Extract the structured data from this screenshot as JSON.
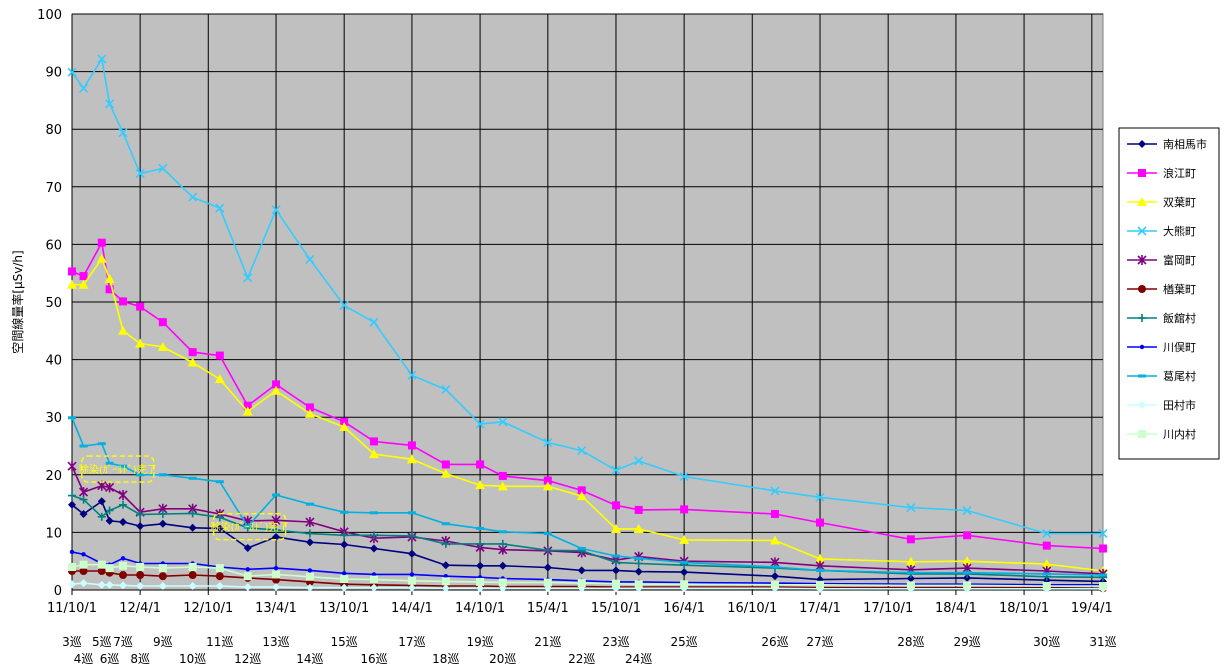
{
  "chart_data": {
    "type": "line",
    "title": "",
    "xlabel": "",
    "ylabel": "空間線量率[μSv/h]",
    "ylim": [
      0,
      100
    ],
    "yticks": [
      0,
      10,
      20,
      30,
      40,
      50,
      60,
      70,
      80,
      90,
      100
    ],
    "xlim": [
      "2011-10-01",
      "2019-05-01"
    ],
    "x_tick_labels": [
      "11/10/1",
      "12/4/1",
      "12/10/1",
      "13/4/1",
      "13/10/1",
      "14/4/1",
      "14/10/1",
      "15/4/1",
      "15/10/1",
      "16/4/1",
      "16/10/1",
      "17/4/1",
      "17/10/1",
      "18/4/1",
      "18/10/1",
      "19/4/1"
    ],
    "x_tick_dates": [
      "2011-10-01",
      "2012-04-01",
      "2012-10-01",
      "2013-04-01",
      "2013-10-01",
      "2014-04-01",
      "2014-10-01",
      "2015-04-01",
      "2015-10-01",
      "2016-04-01",
      "2016-10-01",
      "2017-04-01",
      "2017-10-01",
      "2018-04-01",
      "2018-10-01",
      "2019-04-01"
    ],
    "rounds": [
      {
        "label": "3巡",
        "date": "2011-10-01",
        "row": 1
      },
      {
        "label": "4巡",
        "date": "2011-11-01",
        "row": 2
      },
      {
        "label": "5巡",
        "date": "2011-12-20",
        "row": 1
      },
      {
        "label": "6巡",
        "date": "2012-01-10",
        "row": 2
      },
      {
        "label": "7巡",
        "date": "2012-02-15",
        "row": 1
      },
      {
        "label": "8巡",
        "date": "2012-04-01",
        "row": 2
      },
      {
        "label": "9巡",
        "date": "2012-06-01",
        "row": 1
      },
      {
        "label": "10巡",
        "date": "2012-08-20",
        "row": 2
      },
      {
        "label": "11巡",
        "date": "2012-11-01",
        "row": 1
      },
      {
        "label": "12巡",
        "date": "2013-01-15",
        "row": 2
      },
      {
        "label": "13巡",
        "date": "2013-04-01",
        "row": 1
      },
      {
        "label": "14巡",
        "date": "2013-07-01",
        "row": 2
      },
      {
        "label": "15巡",
        "date": "2013-10-01",
        "row": 1
      },
      {
        "label": "16巡",
        "date": "2013-12-20",
        "row": 2
      },
      {
        "label": "17巡",
        "date": "2014-04-01",
        "row": 1
      },
      {
        "label": "18巡",
        "date": "2014-07-01",
        "row": 2
      },
      {
        "label": "19巡",
        "date": "2014-10-01",
        "row": 1
      },
      {
        "label": "20巡",
        "date": "2014-12-01",
        "row": 2
      },
      {
        "label": "21巡",
        "date": "2015-04-01",
        "row": 1
      },
      {
        "label": "22巡",
        "date": "2015-07-01",
        "row": 2
      },
      {
        "label": "23巡",
        "date": "2015-10-01",
        "row": 1
      },
      {
        "label": "24巡",
        "date": "2015-12-01",
        "row": 2
      },
      {
        "label": "25巡",
        "date": "2016-04-01",
        "row": 1
      },
      {
        "label": "26巡",
        "date": "2016-12-01",
        "row": 1
      },
      {
        "label": "27巡",
        "date": "2017-04-01",
        "row": 1
      },
      {
        "label": "28巡",
        "date": "2017-12-01",
        "row": 1
      },
      {
        "label": "29巡",
        "date": "2018-05-01",
        "row": 1
      },
      {
        "label": "30巡",
        "date": "2018-12-01",
        "row": 1
      },
      {
        "label": "31巡",
        "date": "2019-05-01",
        "row": 1
      }
    ],
    "annotations": [
      {
        "text": "除染(ｶﾞｰﾙﾄﾞ)完了",
        "date": "2012-02-01",
        "y": 21
      },
      {
        "text": "除染(ｶﾞｰﾙﾄﾞ)完了",
        "date": "2013-01-20",
        "y": 11
      }
    ],
    "plot_background": "#c0c0c0",
    "grid": true,
    "legend_position": "right",
    "series": [
      {
        "name": "南相馬市",
        "color": "#000080",
        "marker": "diamond",
        "x": [
          "2011-10-01",
          "2011-11-01",
          "2011-12-20",
          "2012-01-10",
          "2012-02-15",
          "2012-04-01",
          "2012-06-01",
          "2012-08-20",
          "2012-11-01",
          "2013-01-15",
          "2013-04-01",
          "2013-07-01",
          "2013-10-01",
          "2013-12-20",
          "2014-04-01",
          "2014-07-01",
          "2014-10-01",
          "2014-12-01",
          "2015-04-01",
          "2015-07-01",
          "2015-10-01",
          "2015-12-01",
          "2016-04-01",
          "2016-12-01",
          "2017-04-01",
          "2017-12-01",
          "2018-05-01",
          "2018-12-01",
          "2019-05-01"
        ],
        "y": [
          14.8,
          13.2,
          15.4,
          12,
          11.8,
          11.1,
          11.5,
          10.8,
          10.7,
          7.3,
          9.2,
          8.3,
          7.9,
          7.2,
          6.3,
          4.3,
          4.2,
          4.2,
          3.9,
          3.4,
          3.4,
          3.2,
          3.1,
          2.4,
          1.8,
          2.0,
          2.1,
          1.7,
          1.5
        ]
      },
      {
        "name": "浪江町",
        "color": "#ff00ff",
        "marker": "square",
        "x": [
          "2011-10-01",
          "2011-11-01",
          "2011-12-20",
          "2012-01-10",
          "2012-02-15",
          "2012-04-01",
          "2012-06-01",
          "2012-08-20",
          "2012-11-01",
          "2013-01-15",
          "2013-04-01",
          "2013-07-01",
          "2013-10-01",
          "2013-12-20",
          "2014-04-01",
          "2014-07-01",
          "2014-10-01",
          "2014-12-01",
          "2015-04-01",
          "2015-07-01",
          "2015-10-01",
          "2015-12-01",
          "2016-04-01",
          "2016-12-01",
          "2017-04-01",
          "2017-12-01",
          "2018-05-01",
          "2018-12-01",
          "2019-05-01"
        ],
        "y": [
          55.3,
          54.5,
          60.3,
          52.2,
          50.1,
          49.2,
          46.5,
          41.3,
          40.7,
          32,
          35.7,
          31.7,
          29.2,
          25.8,
          25.1,
          21.8,
          21.8,
          19.8,
          19,
          17.3,
          14.7,
          13.9,
          14,
          13.2,
          11.7,
          8.8,
          9.5,
          7.7,
          7.2
        ]
      },
      {
        "name": "双葉町",
        "color": "#ffff00",
        "marker": "triangle",
        "x": [
          "2011-10-01",
          "2011-11-01",
          "2011-12-20",
          "2012-01-10",
          "2012-02-15",
          "2012-04-01",
          "2012-06-01",
          "2012-08-20",
          "2012-11-01",
          "2013-01-15",
          "2013-04-01",
          "2013-07-01",
          "2013-10-01",
          "2013-12-20",
          "2014-04-01",
          "2014-07-01",
          "2014-10-01",
          "2014-12-01",
          "2015-04-01",
          "2015-07-01",
          "2015-10-01",
          "2015-12-01",
          "2016-04-01",
          "2016-12-01",
          "2017-04-01",
          "2017-12-01",
          "2018-05-01",
          "2018-12-01",
          "2019-05-01"
        ],
        "y": [
          53,
          53,
          57.5,
          54,
          45,
          42.8,
          42.2,
          39.5,
          36.6,
          31,
          34.6,
          30.6,
          28.3,
          23.6,
          22.7,
          20.2,
          18.2,
          18,
          18,
          16.3,
          10.6,
          10.6,
          8.7,
          8.6,
          5.4,
          4.9,
          5.0,
          4.5,
          3.3
        ]
      },
      {
        "name": "大熊町",
        "color": "#33ccff",
        "marker": "x",
        "x": [
          "2011-10-01",
          "2011-11-01",
          "2011-12-20",
          "2012-01-10",
          "2012-02-15",
          "2012-04-01",
          "2012-06-01",
          "2012-08-20",
          "2012-11-01",
          "2013-01-15",
          "2013-04-01",
          "2013-07-01",
          "2013-10-01",
          "2013-12-20",
          "2014-04-01",
          "2014-07-01",
          "2014-10-01",
          "2014-12-01",
          "2015-04-01",
          "2015-07-01",
          "2015-10-01",
          "2015-12-01",
          "2016-04-01",
          "2016-12-01",
          "2017-04-01",
          "2017-12-01",
          "2018-05-01",
          "2018-12-01",
          "2019-05-01"
        ],
        "y": [
          89.9,
          87.1,
          92.2,
          84.4,
          79.4,
          72.3,
          73.2,
          68.2,
          66.3,
          54.2,
          66,
          57.4,
          49.4,
          46.5,
          37.3,
          34.8,
          28.8,
          29.2,
          25.6,
          24.2,
          20.8,
          22.4,
          19.7,
          17.2,
          16.1,
          14.3,
          13.8,
          9.8,
          9.8
        ]
      },
      {
        "name": "富岡町",
        "color": "#800080",
        "marker": "star",
        "x": [
          "2011-10-01",
          "2011-11-01",
          "2011-12-20",
          "2012-01-10",
          "2012-02-15",
          "2012-04-01",
          "2012-06-01",
          "2012-08-20",
          "2012-11-01",
          "2013-01-15",
          "2013-04-01",
          "2013-07-01",
          "2013-10-01",
          "2013-12-20",
          "2014-04-01",
          "2014-07-01",
          "2014-10-01",
          "2014-12-01",
          "2015-04-01",
          "2015-07-01",
          "2015-10-01",
          "2015-12-01",
          "2016-04-01",
          "2016-12-01",
          "2017-04-01",
          "2017-12-01",
          "2018-05-01",
          "2018-12-01",
          "2019-05-01"
        ],
        "y": [
          21.5,
          17,
          18.1,
          17.8,
          16.5,
          13.5,
          14.1,
          14.1,
          13.2,
          12,
          12.1,
          11.8,
          10.1,
          9,
          9.2,
          8.5,
          7.4,
          7,
          6.8,
          6.5,
          5.2,
          5.8,
          5,
          4.8,
          4.2,
          3.5,
          3.8,
          3.3,
          2.8
        ]
      },
      {
        "name": "楢葉町",
        "color": "#800000",
        "marker": "circle",
        "x": [
          "2011-10-01",
          "2011-11-01",
          "2011-12-20",
          "2012-01-10",
          "2012-02-15",
          "2012-04-01",
          "2012-06-01",
          "2012-08-20",
          "2012-11-01",
          "2013-01-15",
          "2013-04-01",
          "2013-07-01",
          "2013-10-01",
          "2013-12-20",
          "2014-04-01",
          "2014-07-01",
          "2014-10-01",
          "2014-12-01",
          "2015-04-01",
          "2015-07-01",
          "2015-10-01",
          "2015-12-01",
          "2016-04-01",
          "2016-12-01",
          "2017-04-01",
          "2017-12-01",
          "2018-05-01",
          "2018-12-01",
          "2019-05-01"
        ],
        "y": [
          3.3,
          3.3,
          3.3,
          3.0,
          2.6,
          2.6,
          2.4,
          2.6,
          2.4,
          2.1,
          1.8,
          1.4,
          1.0,
          0.9,
          0.8,
          0.7,
          0.7,
          0.6,
          0.6,
          0.6,
          0.5,
          0.5,
          0.5,
          0.5,
          0.4,
          0.4,
          0.4,
          0.4,
          0.3
        ]
      },
      {
        "name": "飯舘村",
        "color": "#008080",
        "marker": "plus",
        "x": [
          "2011-10-01",
          "2011-11-01",
          "2011-12-20",
          "2012-01-10",
          "2012-02-15",
          "2012-04-01",
          "2012-06-01",
          "2012-08-20",
          "2012-11-01",
          "2013-01-15",
          "2013-04-01",
          "2013-07-01",
          "2013-10-01",
          "2013-12-20",
          "2014-04-01",
          "2014-07-01",
          "2014-10-01",
          "2014-12-01",
          "2015-04-01",
          "2015-07-01",
          "2015-10-01",
          "2015-12-01",
          "2016-04-01",
          "2016-12-01",
          "2017-04-01",
          "2017-12-01",
          "2018-05-01",
          "2018-12-01",
          "2019-05-01"
        ],
        "y": [
          16.4,
          15.7,
          12.7,
          13.8,
          14.8,
          13.1,
          13.2,
          13.3,
          12.6,
          10.8,
          10.4,
          9.8,
          9.5,
          9.5,
          9.4,
          8.0,
          8.0,
          8.0,
          6.9,
          6.8,
          4.8,
          4.6,
          4.3,
          3.8,
          3.4,
          2.8,
          2.8,
          2.3,
          2.2
        ]
      },
      {
        "name": "川俣町",
        "color": "#0000ff",
        "marker": "dot",
        "x": [
          "2011-10-01",
          "2011-11-01",
          "2011-12-20",
          "2012-01-10",
          "2012-02-15",
          "2012-04-01",
          "2012-06-01",
          "2012-08-20",
          "2012-11-01",
          "2013-01-15",
          "2013-04-01",
          "2013-07-01",
          "2013-10-01",
          "2013-12-20",
          "2014-04-01",
          "2014-07-01",
          "2014-10-01",
          "2014-12-01",
          "2015-04-01",
          "2015-07-01",
          "2015-10-01",
          "2015-12-01",
          "2016-04-01",
          "2016-12-01",
          "2017-04-01",
          "2017-12-01",
          "2018-05-01",
          "2018-12-01",
          "2019-05-01"
        ],
        "y": [
          6.6,
          6.2,
          4.6,
          4.4,
          5.5,
          4.6,
          4.6,
          4.6,
          4.0,
          3.6,
          3.8,
          3.4,
          2.9,
          2.7,
          2.7,
          2.4,
          2.2,
          2.0,
          1.8,
          1.6,
          1.4,
          1.4,
          1.3,
          1.2,
          1.1,
          1.0,
          1.0,
          0.9,
          0.9
        ]
      },
      {
        "name": "葛尾村",
        "color": "#00b0e0",
        "marker": "dash",
        "x": [
          "2011-10-01",
          "2011-11-01",
          "2011-12-20",
          "2012-01-10",
          "2012-02-15",
          "2012-04-01",
          "2012-06-01",
          "2012-08-20",
          "2012-11-01",
          "2013-01-15",
          "2013-04-01",
          "2013-07-01",
          "2013-10-01",
          "2013-12-20",
          "2014-04-01",
          "2014-07-01",
          "2014-10-01",
          "2014-12-01",
          "2015-04-01",
          "2015-07-01",
          "2015-10-01",
          "2015-12-01",
          "2016-04-01",
          "2016-12-01",
          "2017-04-01",
          "2017-12-01",
          "2018-05-01",
          "2018-12-01",
          "2019-05-01"
        ],
        "y": [
          29.9,
          25,
          25.4,
          22,
          21.5,
          20,
          20,
          19.4,
          18.8,
          11,
          16.5,
          14.9,
          13.5,
          13.4,
          13.4,
          11.5,
          10.7,
          10.1,
          9.8,
          7.2,
          5.9,
          5.5,
          4.8,
          4.0,
          3.4,
          3.0,
          3.0,
          2.8,
          2.6
        ]
      },
      {
        "name": "田村市",
        "color": "#ccffff",
        "marker": "diamond",
        "x": [
          "2011-10-01",
          "2011-11-01",
          "2011-12-20",
          "2012-01-10",
          "2012-02-15",
          "2012-04-01",
          "2012-06-01",
          "2012-08-20",
          "2012-11-01",
          "2013-01-15",
          "2013-04-01",
          "2013-07-01",
          "2013-10-01",
          "2013-12-20",
          "2014-04-01",
          "2014-07-01",
          "2014-10-01",
          "2014-12-01",
          "2015-04-01",
          "2015-07-01",
          "2015-10-01",
          "2015-12-01",
          "2016-04-01",
          "2016-12-01",
          "2017-04-01",
          "2017-12-01",
          "2018-05-01",
          "2018-12-01",
          "2019-05-01"
        ],
        "y": [
          1.0,
          1.2,
          0.9,
          0.9,
          0.8,
          0.7,
          0.7,
          0.7,
          0.7,
          0.5,
          0.5,
          0.4,
          0.4,
          0.4,
          0.4,
          0.3,
          0.3,
          0.3,
          0.3,
          0.3,
          0.3,
          0.3,
          0.3,
          0.3,
          0.2,
          0.2,
          0.2,
          0.2,
          0.2
        ]
      },
      {
        "name": "川内村",
        "color": "#ccffcc",
        "marker": "square",
        "x": [
          "2011-10-01",
          "2011-11-01",
          "2011-12-20",
          "2012-01-10",
          "2012-02-15",
          "2012-04-01",
          "2012-06-01",
          "2012-08-20",
          "2012-11-01",
          "2013-01-15",
          "2013-04-01",
          "2013-07-01",
          "2013-10-01",
          "2013-12-20",
          "2014-04-01",
          "2014-07-01",
          "2014-10-01",
          "2014-12-01",
          "2015-04-01",
          "2015-07-01",
          "2015-10-01",
          "2015-12-01",
          "2016-04-01",
          "2016-12-01",
          "2017-04-01",
          "2017-12-01",
          "2018-05-01",
          "2018-12-01",
          "2019-05-01"
        ],
        "y": [
          4.0,
          4.4,
          4.4,
          3.8,
          4.2,
          4.0,
          3.8,
          4.0,
          3.8,
          2.4,
          2.7,
          2.3,
          1.9,
          1.8,
          1.6,
          1.5,
          1.4,
          1.3,
          1.3,
          1.2,
          1.1,
          1.0,
          1.0,
          0.9,
          0.9,
          0.8,
          0.8,
          0.7,
          0.7
        ]
      }
    ]
  }
}
